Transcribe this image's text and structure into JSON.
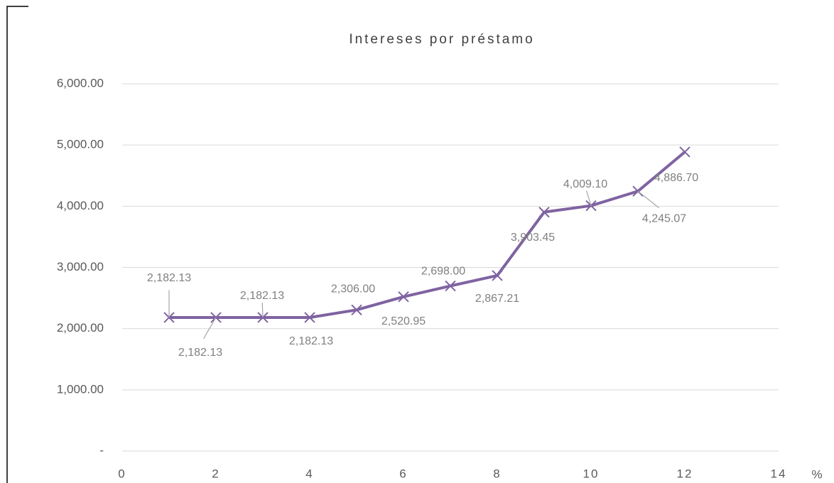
{
  "chart_data": {
    "type": "line",
    "title": "Intereses por préstamo",
    "x": [
      1,
      2,
      3,
      4,
      5,
      6,
      7,
      8,
      9,
      10,
      11,
      12
    ],
    "values": [
      2182.13,
      2182.13,
      2182.13,
      2182.13,
      2306.0,
      2520.95,
      2698.0,
      2867.21,
      3903.45,
      4009.1,
      4245.07,
      4886.7
    ],
    "value_labels": [
      "2,182.13",
      "2,182.13",
      "2,182.13",
      "2,182.13",
      "2,306.00",
      "2,520.95",
      "2,698.00",
      "2,867.21",
      "3,903.45",
      "4,009.10",
      "4,245.07",
      "4,886.70"
    ],
    "color": "#7f63a1",
    "xlim": [
      0,
      14
    ],
    "xticks": [
      0,
      2,
      4,
      6,
      8,
      10,
      12,
      14
    ],
    "ylim": [
      0,
      6000
    ],
    "yticks": [
      {
        "value": 0,
        "label": "-"
      },
      {
        "value": 1000,
        "label": "1,000.00"
      },
      {
        "value": 2000,
        "label": "2,000.00"
      },
      {
        "value": 3000,
        "label": "3,000.00"
      },
      {
        "value": 4000,
        "label": "4,000.00"
      },
      {
        "value": 5000,
        "label": "5,000.00"
      },
      {
        "value": 6000,
        "label": "6,000.00"
      }
    ],
    "xlabel": "%",
    "grid": true
  }
}
